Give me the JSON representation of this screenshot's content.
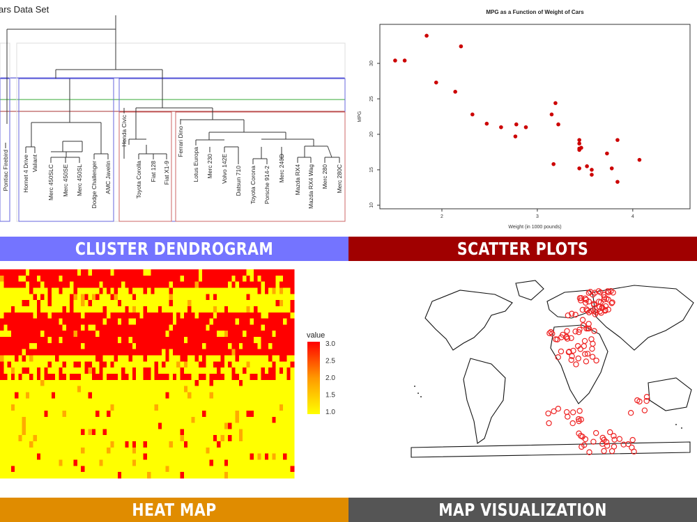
{
  "panels": {
    "dendrogram": {
      "banner": "CLUSTER DENDROGRAM",
      "banner_color": "#7474ff",
      "title_fragment": "ars Data Set",
      "leaves": [
        "Pontiac Firebird",
        "Hornet 4 Drive",
        "Valiant",
        "Merc 450SLC",
        "Merc 450SE",
        "Merc 450SL",
        "Dodge Challenger",
        "AMC Javelin",
        "Honda Civic",
        "Toyota Corolla",
        "Fiat 128",
        "Fiat X1-9",
        "Ferrari Dino",
        "Lotus Europa",
        "Merc 230",
        "Volvo 142E",
        "Datsun 710",
        "Toyota Corona",
        "Porsche 914-2",
        "Merc 240D",
        "Mazda RX4",
        "Mazda RX4 Wag",
        "Merc 280",
        "Merc 280C"
      ],
      "cut_colors": [
        "#3333cc",
        "#33aa33",
        "#aa3333"
      ]
    },
    "scatter": {
      "banner": "SCATTER PLOTS",
      "banner_color": "#a00000",
      "point_color": "#cc0000",
      "chart_data": {
        "type": "scatter",
        "title": "MPG as a Function of Weight of Cars",
        "xlabel": "Weight (in 1000 pounds)",
        "ylabel": "MPG",
        "xlim": [
          1.35,
          4.6
        ],
        "ylim": [
          9.5,
          35.5
        ],
        "x_ticks": [
          2,
          3,
          4
        ],
        "y_ticks": [
          10,
          15,
          20,
          25,
          30
        ],
        "points": [
          [
            1.51,
            30.4
          ],
          [
            1.61,
            30.4
          ],
          [
            1.84,
            33.9
          ],
          [
            1.94,
            27.3
          ],
          [
            2.14,
            26.0
          ],
          [
            2.2,
            32.4
          ],
          [
            2.32,
            22.8
          ],
          [
            2.47,
            21.5
          ],
          [
            2.62,
            21.0
          ],
          [
            2.77,
            19.7
          ],
          [
            2.78,
            21.4
          ],
          [
            2.88,
            21.0
          ],
          [
            3.15,
            22.8
          ],
          [
            3.17,
            15.8
          ],
          [
            3.19,
            24.4
          ],
          [
            3.22,
            21.4
          ],
          [
            3.44,
            18.7
          ],
          [
            3.44,
            19.2
          ],
          [
            3.44,
            17.8
          ],
          [
            3.44,
            15.2
          ],
          [
            3.46,
            18.1
          ],
          [
            3.52,
            15.5
          ],
          [
            3.57,
            15.0
          ],
          [
            3.57,
            14.3
          ],
          [
            3.73,
            17.3
          ],
          [
            3.78,
            15.2
          ],
          [
            3.84,
            19.2
          ],
          [
            3.84,
            13.3
          ],
          [
            4.07,
            16.4
          ],
          [
            3.44,
            18.0
          ]
        ]
      }
    },
    "heatmap": {
      "banner": "HEAT MAP",
      "banner_color": "#e08c00",
      "legend_title": "value",
      "legend_ticks": [
        "3.0",
        "2.5",
        "2.0",
        "1.5",
        "1.0"
      ],
      "chart_data": {
        "type": "heatmap",
        "value_range": [
          1.0,
          3.0
        ],
        "colors_low_to_high": [
          "#ffff00",
          "#ff0000"
        ]
      }
    },
    "map": {
      "banner": "MAP VISUALIZATION",
      "banner_color": "#555555",
      "marker_color": "#ee2222"
    }
  }
}
